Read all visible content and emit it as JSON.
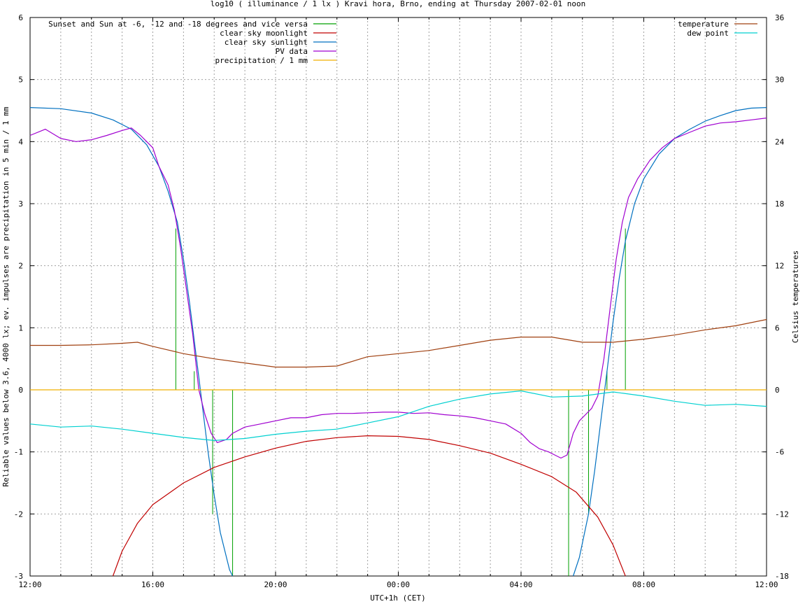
{
  "chart_data": {
    "type": "line",
    "title": "log10 ( illuminance / 1 lx ) Kravi hora, Brno, ending at Thursday 2007-02-01 noon",
    "xlabel": "UTC+1h (CET)",
    "ylabel": "Reliable values below 3.6, 4000 lx; ev. impulses are precipitation in 5 min / 1 mm",
    "y2label": "Celsius temperatures",
    "x_unit": "hours since 12:00 UTC+1h",
    "xlim": [
      0,
      24
    ],
    "ylim": [
      -3,
      6
    ],
    "y2lim": [
      -18,
      36
    ],
    "x_ticks": [
      {
        "x": 0,
        "label": "12:00"
      },
      {
        "x": 4,
        "label": "16:00"
      },
      {
        "x": 8,
        "label": "20:00"
      },
      {
        "x": 12,
        "label": "00:00"
      },
      {
        "x": 16,
        "label": "04:00"
      },
      {
        "x": 20,
        "label": "08:00"
      },
      {
        "x": 24,
        "label": "12:00"
      }
    ],
    "y_ticks": [
      "-3",
      "-2",
      "-1",
      "0",
      "1",
      "2",
      "3",
      "4",
      "5",
      "6"
    ],
    "y2_ticks": [
      "-18",
      "-12",
      "-6",
      "0",
      "6",
      "12",
      "18",
      "24",
      "30",
      "36"
    ],
    "grid": true,
    "legend_left": [
      {
        "name": "Sunset and Sun at -6, -12 and -18 degrees and vice versa",
        "color": "#00a000"
      },
      {
        "name": "clear sky moonlight",
        "color": "#c00000"
      },
      {
        "name": "clear sky sunlight",
        "color": "#0070c0"
      },
      {
        "name": "PV data",
        "color": "#a000d0"
      },
      {
        "name": "precipitation / 1 mm",
        "color": "#f0b000"
      }
    ],
    "legend_right": [
      {
        "name": "temperature",
        "color": "#a04010"
      },
      {
        "name": "dew point",
        "color": "#00d0d0"
      }
    ],
    "sun_events": [
      {
        "x": 4.75,
        "y": 2.6
      },
      {
        "x": 5.35,
        "y": 0.3
      },
      {
        "x": 5.95,
        "y": -2.0
      },
      {
        "x": 6.6,
        "y": -3.0
      },
      {
        "x": 17.55,
        "y": -3.0
      },
      {
        "x": 18.2,
        "y": -2.0
      },
      {
        "x": 18.8,
        "y": 0.3
      },
      {
        "x": 19.4,
        "y": 2.6
      }
    ],
    "series": [
      {
        "name": "clear sky sunlight",
        "axis": "left",
        "points": [
          [
            0,
            4.55
          ],
          [
            1,
            4.53
          ],
          [
            2,
            4.46
          ],
          [
            2.7,
            4.35
          ],
          [
            3.3,
            4.2
          ],
          [
            3.8,
            3.95
          ],
          [
            4.2,
            3.6
          ],
          [
            4.5,
            3.2
          ],
          [
            4.8,
            2.7
          ],
          [
            5.0,
            2.1
          ],
          [
            5.2,
            1.4
          ],
          [
            5.4,
            0.6
          ],
          [
            5.6,
            -0.2
          ],
          [
            5.8,
            -1.0
          ],
          [
            6.0,
            -1.7
          ],
          [
            6.2,
            -2.3
          ],
          [
            6.5,
            -2.9
          ],
          [
            6.6,
            -3.0
          ]
        ]
      },
      {
        "name": "clear sky sunlight",
        "axis": "left",
        "points": [
          [
            17.7,
            -3.0
          ],
          [
            17.9,
            -2.7
          ],
          [
            18.2,
            -2.0
          ],
          [
            18.4,
            -1.3
          ],
          [
            18.6,
            -0.5
          ],
          [
            18.8,
            0.3
          ],
          [
            19.0,
            1.1
          ],
          [
            19.2,
            1.8
          ],
          [
            19.4,
            2.4
          ],
          [
            19.7,
            3.0
          ],
          [
            20.0,
            3.4
          ],
          [
            20.5,
            3.8
          ],
          [
            21.0,
            4.05
          ],
          [
            21.5,
            4.2
          ],
          [
            22,
            4.33
          ],
          [
            22.5,
            4.42
          ],
          [
            23,
            4.5
          ],
          [
            23.5,
            4.54
          ],
          [
            24,
            4.55
          ]
        ]
      },
      {
        "name": "clear sky moonlight",
        "axis": "left",
        "points": [
          [
            2.7,
            -3.0
          ],
          [
            3.0,
            -2.6
          ],
          [
            3.5,
            -2.15
          ],
          [
            4.0,
            -1.85
          ],
          [
            5.0,
            -1.5
          ],
          [
            6.0,
            -1.25
          ],
          [
            7.0,
            -1.08
          ],
          [
            8.0,
            -0.94
          ],
          [
            9.0,
            -0.83
          ],
          [
            10.0,
            -0.77
          ],
          [
            11.0,
            -0.74
          ],
          [
            12.0,
            -0.75
          ],
          [
            13.0,
            -0.8
          ],
          [
            14.0,
            -0.9
          ],
          [
            15.0,
            -1.02
          ],
          [
            16.0,
            -1.2
          ],
          [
            17.0,
            -1.4
          ],
          [
            17.8,
            -1.65
          ],
          [
            18.5,
            -2.05
          ],
          [
            19.0,
            -2.5
          ],
          [
            19.4,
            -3.0
          ]
        ]
      },
      {
        "name": "PV data",
        "axis": "left",
        "points": [
          [
            0,
            4.1
          ],
          [
            0.5,
            4.2
          ],
          [
            1.0,
            4.05
          ],
          [
            1.5,
            4.0
          ],
          [
            2.0,
            4.03
          ],
          [
            2.5,
            4.1
          ],
          [
            3.0,
            4.18
          ],
          [
            3.3,
            4.22
          ],
          [
            3.6,
            4.1
          ],
          [
            3.8,
            4.0
          ],
          [
            4.0,
            3.9
          ],
          [
            4.2,
            3.6
          ],
          [
            4.5,
            3.3
          ],
          [
            4.7,
            2.9
          ],
          [
            4.9,
            2.3
          ],
          [
            5.1,
            1.6
          ],
          [
            5.3,
            0.9
          ],
          [
            5.5,
            0.0
          ],
          [
            5.7,
            -0.4
          ],
          [
            5.9,
            -0.7
          ],
          [
            6.1,
            -0.85
          ],
          [
            6.4,
            -0.8
          ],
          [
            6.6,
            -0.7
          ],
          [
            7.0,
            -0.6
          ],
          [
            7.5,
            -0.55
          ],
          [
            8.0,
            -0.5
          ],
          [
            8.5,
            -0.45
          ],
          [
            9.0,
            -0.45
          ],
          [
            9.5,
            -0.4
          ],
          [
            10.0,
            -0.38
          ],
          [
            10.5,
            -0.38
          ],
          [
            11.0,
            -0.37
          ],
          [
            11.5,
            -0.36
          ],
          [
            12.0,
            -0.36
          ],
          [
            12.5,
            -0.38
          ],
          [
            13.0,
            -0.37
          ],
          [
            13.5,
            -0.4
          ],
          [
            14.0,
            -0.42
          ],
          [
            14.5,
            -0.45
          ],
          [
            15.0,
            -0.5
          ],
          [
            15.5,
            -0.55
          ],
          [
            16.0,
            -0.7
          ],
          [
            16.3,
            -0.85
          ],
          [
            16.6,
            -0.95
          ],
          [
            16.9,
            -1.0
          ],
          [
            17.1,
            -1.05
          ],
          [
            17.3,
            -1.1
          ],
          [
            17.5,
            -1.05
          ],
          [
            17.7,
            -0.7
          ],
          [
            17.9,
            -0.5
          ],
          [
            18.1,
            -0.4
          ],
          [
            18.3,
            -0.3
          ],
          [
            18.5,
            -0.1
          ],
          [
            18.7,
            0.5
          ],
          [
            18.9,
            1.3
          ],
          [
            19.1,
            2.1
          ],
          [
            19.3,
            2.7
          ],
          [
            19.5,
            3.1
          ],
          [
            19.8,
            3.4
          ],
          [
            20.2,
            3.7
          ],
          [
            20.6,
            3.9
          ],
          [
            21.0,
            4.05
          ],
          [
            21.5,
            4.15
          ],
          [
            22.0,
            4.25
          ],
          [
            22.5,
            4.3
          ],
          [
            23.0,
            4.32
          ],
          [
            23.5,
            4.35
          ],
          [
            24,
            4.38
          ]
        ]
      },
      {
        "name": "temperature",
        "axis": "right",
        "points": [
          [
            0,
            4.3
          ],
          [
            1,
            4.3
          ],
          [
            2,
            4.35
          ],
          [
            3,
            4.5
          ],
          [
            3.5,
            4.6
          ],
          [
            4,
            4.2
          ],
          [
            5,
            3.5
          ],
          [
            6,
            3.0
          ],
          [
            7,
            2.6
          ],
          [
            8,
            2.2
          ],
          [
            9,
            2.2
          ],
          [
            10,
            2.3
          ],
          [
            11,
            3.2
          ],
          [
            12,
            3.5
          ],
          [
            13,
            3.8
          ],
          [
            14,
            4.3
          ],
          [
            15,
            4.8
          ],
          [
            16,
            5.1
          ],
          [
            17,
            5.1
          ],
          [
            18,
            4.6
          ],
          [
            19,
            4.6
          ],
          [
            20,
            4.9
          ],
          [
            21,
            5.3
          ],
          [
            22,
            5.8
          ],
          [
            23,
            6.2
          ],
          [
            24,
            6.8
          ]
        ]
      },
      {
        "name": "dew point",
        "axis": "right",
        "points": [
          [
            0,
            -3.3
          ],
          [
            1,
            -3.6
          ],
          [
            2,
            -3.5
          ],
          [
            3,
            -3.8
          ],
          [
            4,
            -4.2
          ],
          [
            5,
            -4.6
          ],
          [
            6,
            -4.9
          ],
          [
            7,
            -4.7
          ],
          [
            8,
            -4.3
          ],
          [
            9,
            -4.0
          ],
          [
            10,
            -3.8
          ],
          [
            11,
            -3.2
          ],
          [
            12,
            -2.6
          ],
          [
            13,
            -1.6
          ],
          [
            14,
            -0.9
          ],
          [
            15,
            -0.4
          ],
          [
            16,
            -0.1
          ],
          [
            17,
            -0.7
          ],
          [
            18,
            -0.6
          ],
          [
            19,
            -0.2
          ],
          [
            20,
            -0.6
          ],
          [
            21,
            -1.1
          ],
          [
            22,
            -1.5
          ],
          [
            23,
            -1.4
          ],
          [
            24,
            -1.6
          ]
        ]
      },
      {
        "name": "precipitation / 1 mm",
        "axis": "left",
        "points": [
          [
            0,
            0
          ],
          [
            24,
            0
          ]
        ]
      }
    ]
  }
}
